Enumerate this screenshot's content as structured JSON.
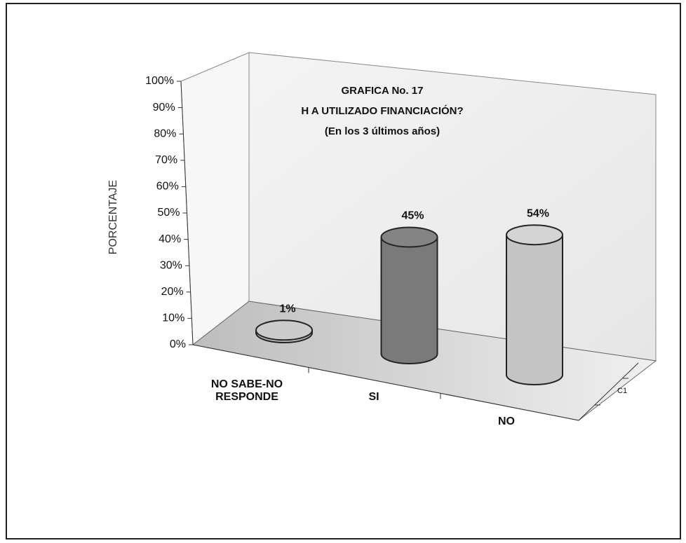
{
  "chart_data": {
    "type": "bar3d",
    "title": [
      "GRAFICA  No. 17",
      "H A  UTILIZADO FINANCIACIÓN?",
      "(En los 3 últimos años)"
    ],
    "ylabel": "PORCENTAJE",
    "categories": [
      "NO SABE-NO RESPONDE",
      "SI",
      "NO"
    ],
    "values": [
      1,
      45,
      54
    ],
    "value_labels": [
      "1%",
      "45%",
      "54%"
    ],
    "colors": [
      "#bdbdbd",
      "#7a7a7a",
      "#c4c4c4"
    ],
    "series_label": "C1",
    "ylim": [
      0,
      100
    ],
    "yticks": [
      {
        "value": 0,
        "label": "0%"
      },
      {
        "value": 10,
        "label": "10%"
      },
      {
        "value": 20,
        "label": "20%"
      },
      {
        "value": 30,
        "label": "30%"
      },
      {
        "value": 40,
        "label": "40%"
      },
      {
        "value": 50,
        "label": "50%"
      },
      {
        "value": 60,
        "label": "60%"
      },
      {
        "value": 70,
        "label": "70%"
      },
      {
        "value": 80,
        "label": "80%"
      },
      {
        "value": 90,
        "label": "90%"
      },
      {
        "value": 100,
        "label": "100%"
      }
    ],
    "grid": false
  }
}
